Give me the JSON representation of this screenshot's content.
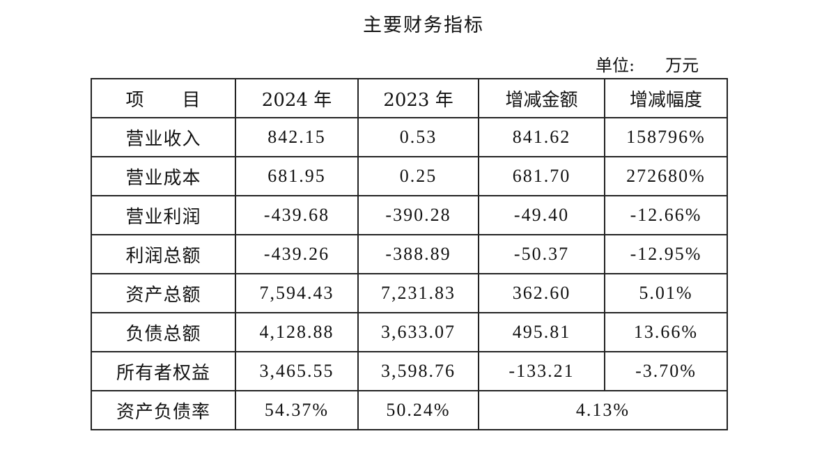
{
  "title": "主要财务指标",
  "unit_label": "单位:",
  "unit_value": "万元",
  "headers": [
    "项　　目",
    "2024 年",
    "2023 年",
    "增减金额",
    "增减幅度"
  ],
  "rows": [
    [
      "营业收入",
      "842.15",
      "0.53",
      "841.62",
      "158796%"
    ],
    [
      "营业成本",
      "681.95",
      "0.25",
      "681.70",
      "272680%"
    ],
    [
      "营业利润",
      "-439.68",
      "-390.28",
      "-49.40",
      "-12.66%"
    ],
    [
      "利润总额",
      "-439.26",
      "-388.89",
      "-50.37",
      "-12.95%"
    ],
    [
      "资产总额",
      "7,594.43",
      "7,231.83",
      "362.60",
      "5.01%"
    ],
    [
      "负债总额",
      "4,128.88",
      "3,633.07",
      "495.81",
      "13.66%"
    ],
    [
      "所有者权益",
      "3,465.55",
      "3,598.76",
      "-133.21",
      "-3.70%"
    ]
  ],
  "last_row": [
    "资产负债率",
    "54.37%",
    "50.24%",
    "4.13%"
  ]
}
